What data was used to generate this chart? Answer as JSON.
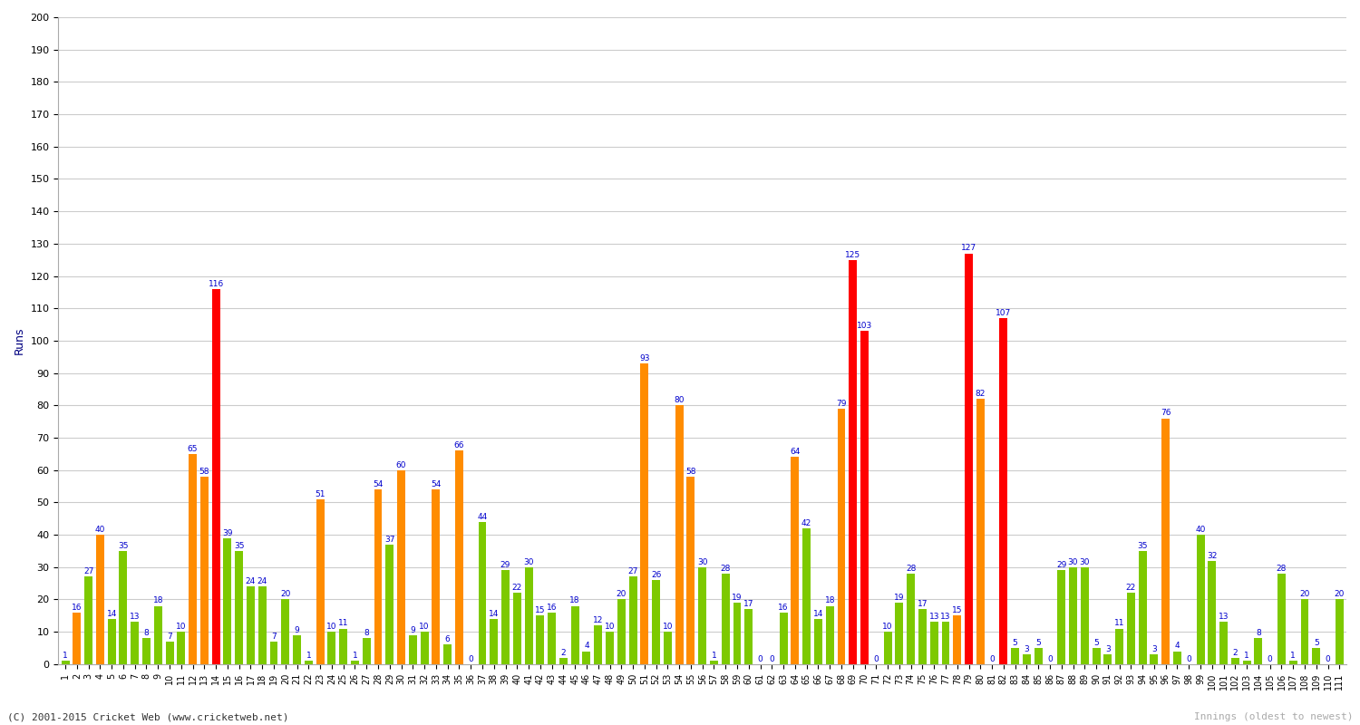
{
  "xlabel": "Innings (oldest to newest)",
  "ylabel": "Runs",
  "ylim": [
    0,
    200
  ],
  "yticks": [
    0,
    10,
    20,
    30,
    40,
    50,
    60,
    70,
    80,
    90,
    100,
    110,
    120,
    130,
    140,
    150,
    160,
    170,
    180,
    190,
    200
  ],
  "background_color": "#ffffff",
  "grid_color": "#cccccc",
  "innings_numbers": [
    1,
    2,
    3,
    4,
    5,
    6,
    7,
    8,
    9,
    10,
    11,
    12,
    13,
    14,
    15,
    16,
    17,
    18,
    19,
    20,
    21,
    22,
    23,
    24,
    25,
    26,
    27,
    28,
    29,
    30,
    31,
    32,
    33,
    34,
    35,
    36,
    37,
    38,
    39,
    40,
    41,
    42,
    43,
    44,
    45,
    46,
    47,
    48,
    49,
    50,
    51,
    52,
    53,
    54,
    55,
    56,
    57,
    58,
    59,
    60,
    61,
    62,
    63,
    64,
    65,
    66,
    67,
    68,
    69,
    70,
    71,
    72,
    73,
    74,
    75,
    76,
    77,
    78,
    79,
    80,
    81,
    82,
    83,
    84,
    85,
    86,
    87,
    88,
    89,
    90,
    91,
    92,
    93,
    94,
    95,
    96,
    97,
    98,
    99,
    100,
    101,
    102,
    103,
    104,
    105,
    106,
    107,
    108,
    109,
    110,
    111
  ],
  "scores": [
    1,
    16,
    27,
    40,
    14,
    35,
    13,
    8,
    18,
    7,
    10,
    65,
    58,
    116,
    39,
    35,
    24,
    24,
    7,
    20,
    9,
    1,
    51,
    10,
    11,
    1,
    8,
    54,
    37,
    60,
    9,
    10,
    54,
    6,
    66,
    0,
    44,
    14,
    29,
    22,
    30,
    15,
    16,
    2,
    18,
    4,
    12,
    10,
    20,
    27,
    93,
    26,
    10,
    80,
    58,
    30,
    1,
    28,
    19,
    17,
    0,
    0,
    16,
    64,
    42,
    14,
    18,
    79,
    125,
    103,
    0,
    10,
    19,
    28,
    17,
    13,
    13,
    15,
    127,
    82,
    0,
    107,
    5,
    3,
    5,
    0,
    29,
    30,
    30,
    5,
    3,
    11,
    22,
    35,
    3,
    76,
    4,
    0,
    40,
    32,
    13,
    2,
    1,
    8,
    0,
    28,
    1,
    20,
    5,
    0,
    20
  ],
  "colors": [
    "green",
    "orange",
    "green",
    "orange",
    "green",
    "green",
    "green",
    "green",
    "green",
    "green",
    "green",
    "orange",
    "orange",
    "red",
    "green",
    "green",
    "green",
    "green",
    "green",
    "green",
    "green",
    "green",
    "orange",
    "green",
    "green",
    "green",
    "green",
    "orange",
    "green",
    "orange",
    "green",
    "green",
    "orange",
    "green",
    "orange",
    "green",
    "green",
    "green",
    "green",
    "green",
    "green",
    "green",
    "green",
    "green",
    "green",
    "green",
    "green",
    "green",
    "green",
    "green",
    "orange",
    "green",
    "green",
    "orange",
    "orange",
    "green",
    "green",
    "green",
    "green",
    "green",
    "green",
    "green",
    "green",
    "orange",
    "green",
    "green",
    "green",
    "orange",
    "red",
    "red",
    "green",
    "green",
    "green",
    "green",
    "green",
    "green",
    "green",
    "orange",
    "red",
    "orange",
    "green",
    "red",
    "green",
    "green",
    "green",
    "green",
    "green",
    "green",
    "green",
    "green",
    "green",
    "green",
    "green",
    "green",
    "green",
    "orange",
    "green",
    "green",
    "green",
    "green",
    "green",
    "green",
    "green",
    "green",
    "green",
    "green",
    "green",
    "green",
    "green",
    "green",
    "green"
  ],
  "bar_width": 0.7,
  "label_fontsize": 6.5,
  "tick_fontsize": 7,
  "footer": "(C) 2001-2015 Cricket Web (www.cricketweb.net)",
  "watermark": "Innings (oldest to newest)"
}
